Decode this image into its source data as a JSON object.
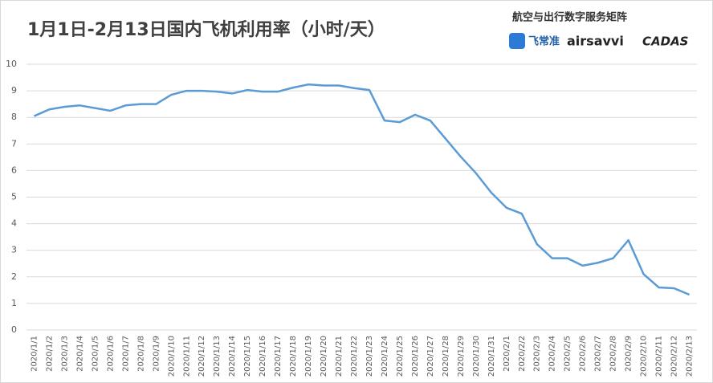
{
  "chart_data": {
    "type": "line",
    "title": "1月1日-2月13日国内飞机利用率（小时/天）",
    "brand": {
      "tagline": "航空与出行数字服务矩阵",
      "logos": [
        "飞常准",
        "airsavvi",
        "CADAS"
      ]
    },
    "categories": [
      "2020/1/1",
      "2020/1/2",
      "2020/1/3",
      "2020/1/4",
      "2020/1/5",
      "2020/1/6",
      "2020/1/7",
      "2020/1/8",
      "2020/1/9",
      "2020/1/10",
      "2020/1/11",
      "2020/1/12",
      "2020/1/13",
      "2020/1/14",
      "2020/1/15",
      "2020/1/16",
      "2020/1/17",
      "2020/1/18",
      "2020/1/19",
      "2020/1/20",
      "2020/1/21",
      "2020/1/22",
      "2020/1/23",
      "2020/1/24",
      "2020/1/25",
      "2020/1/26",
      "2020/1/27",
      "2020/1/28",
      "2020/1/29",
      "2020/1/30",
      "2020/1/31",
      "2020/2/1",
      "2020/2/2",
      "2020/2/3",
      "2020/2/4",
      "2020/2/5",
      "2020/2/6",
      "2020/2/7",
      "2020/2/8",
      "2020/2/9",
      "2020/2/10",
      "2020/2/11",
      "2020/2/12",
      "2020/2/13"
    ],
    "values": [
      8.05,
      8.3,
      8.4,
      8.45,
      8.35,
      8.25,
      8.45,
      8.5,
      8.5,
      8.85,
      9.0,
      9.0,
      8.97,
      8.9,
      9.03,
      8.97,
      8.97,
      9.12,
      9.24,
      9.2,
      9.2,
      9.1,
      9.03,
      7.88,
      7.82,
      8.1,
      7.88,
      7.2,
      6.52,
      5.9,
      5.17,
      4.6,
      4.38,
      3.23,
      2.7,
      2.7,
      2.42,
      2.53,
      2.7,
      3.38,
      2.1,
      1.6,
      1.57,
      1.33
    ],
    "color": "#5b9bd5",
    "ylim": [
      0,
      10
    ],
    "yticks": [
      0,
      1,
      2,
      3,
      4,
      5,
      6,
      7,
      8,
      9,
      10
    ],
    "grid": true
  }
}
